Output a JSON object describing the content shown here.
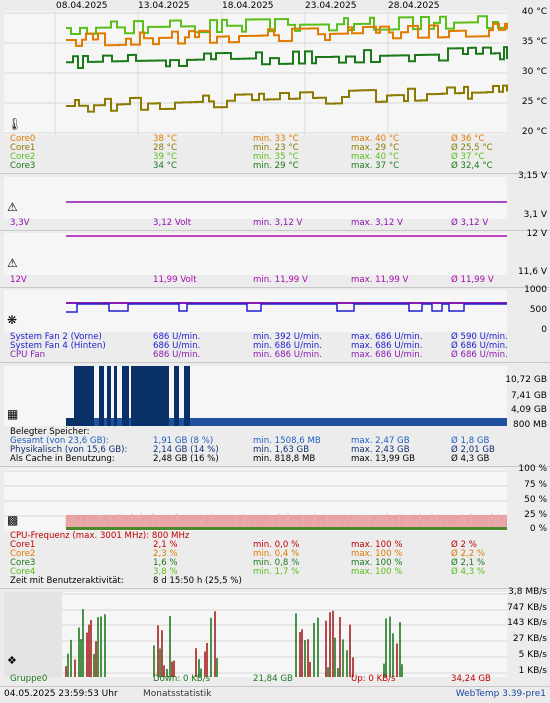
{
  "dates": [
    "08.04.2025",
    "13.04.2025",
    "18.04.2025",
    "23.04.2025",
    "28.04.2025"
  ],
  "colors": {
    "core0": "#e07a00",
    "core1": "#8a7a00",
    "core2": "#5bbf1a",
    "core3": "#1a7a1a",
    "volt3": "#9010b0",
    "volt12": "#aa0aaa",
    "fan_blue": "#2020d0",
    "fan_purple": "#8a1ab0",
    "mem_fill": "#0a3068",
    "mem_bar": "#2050a0",
    "cpu_fill": "#e8a0a0",
    "net_bar": "#a01010",
    "net_bar2": "#107010"
  },
  "temp": {
    "axis": [
      "40 °C",
      "35 °C",
      "30 °C",
      "25 °C",
      "20 °C"
    ],
    "rows": [
      {
        "name": "Core0",
        "cur": "38 °C",
        "min": "min. 33 °C",
        "max": "max. 40 °C",
        "avg": "Ø 36 °C",
        "color": "#e07a00"
      },
      {
        "name": "Core1",
        "cur": "28 °C",
        "min": "min. 23 °C",
        "max": "max. 29 °C",
        "avg": "Ø 25,5 °C",
        "color": "#8a7a00"
      },
      {
        "name": "Core2",
        "cur": "39 °C",
        "min": "min. 35 °C",
        "max": "max. 40 °C",
        "avg": "Ø 37 °C",
        "color": "#5bbf1a"
      },
      {
        "name": "Core3",
        "cur": "34 °C",
        "min": "min. 29 °C",
        "max": "max. 37 °C",
        "avg": "Ø 32,4 °C",
        "color": "#1a7a1a"
      }
    ]
  },
  "v33": {
    "axis": [
      "3,15 V",
      "3,1 V"
    ],
    "row": {
      "name": "3,3V",
      "cur": "3,12 Volt",
      "min": "min. 3,12 V",
      "max": "max. 3,12 V",
      "avg": "Ø 3,12 V"
    }
  },
  "v12": {
    "axis": [
      "12 V",
      "11,6 V"
    ],
    "row": {
      "name": "12V",
      "cur": "11,99 Volt",
      "min": "min. 11,99 V",
      "max": "max. 11,99 V",
      "avg": "Ø 11,99 V"
    }
  },
  "fans": {
    "axis": [
      "1000",
      "500",
      "0"
    ],
    "rows": [
      {
        "name": "System Fan 2 (Vorne)",
        "cur": "686 U/min.",
        "min": "min. 392 U/min.",
        "max": "max. 686 U/min.",
        "avg": "Ø 590 U/min.",
        "color": "#2020d0"
      },
      {
        "name": "System Fan 4 (Hinten)",
        "cur": "686 U/min.",
        "min": "min. 686 U/min.",
        "max": "max. 686 U/min.",
        "avg": "Ø 686 U/min.",
        "color": "#2020d0"
      },
      {
        "name": "CPU Fan",
        "cur": "686 U/min.",
        "min": "min. 686 U/min.",
        "max": "max. 686 U/min.",
        "avg": "Ø 686 U/min.",
        "color": "#8a1ab0"
      }
    ]
  },
  "mem": {
    "axis": [
      "10,72 GB",
      "7,41 GB",
      "4,09 GB",
      "800 MB"
    ],
    "title": "Belegter Speicher:",
    "rows": [
      {
        "name": "Gesamt (von 23,6 GB):",
        "cur": "1,91 GB (8 %)",
        "min": "min. 1508,6 MB",
        "max": "max. 2,47 GB",
        "avg": "Ø 1,8 GB",
        "color": "#2060c0"
      },
      {
        "name": "Physikalisch (von 15,6 GB):",
        "cur": "2,14 GB (14 %)",
        "min": "min. 1,63 GB",
        "max": "max. 2,43 GB",
        "avg": "Ø 2,01 GB",
        "color": "#103070"
      },
      {
        "name": "Als Cache in Benutzung:",
        "cur": "2,48 GB (16 %)",
        "min": "min. 818,8 MB",
        "max": "max. 13,99 GB",
        "avg": "Ø 4,3 GB",
        "color": "#000000"
      }
    ]
  },
  "cpu": {
    "axis": [
      "100 %",
      "75 %",
      "50 %",
      "25 %",
      "0 %"
    ],
    "freq": "CPU-Frequenz (max. 3001 MHz): 800 MHz",
    "rows": [
      {
        "name": "Core1",
        "cur": "2,1 %",
        "min": "min. 0,0 %",
        "max": "max. 100 %",
        "avg": "Ø 2 %",
        "color": "#c00000"
      },
      {
        "name": "Core2",
        "cur": "2,3 %",
        "min": "min. 0,4 %",
        "max": "max. 100 %",
        "avg": "Ø 2,2 %",
        "color": "#e07a00"
      },
      {
        "name": "Core3",
        "cur": "1,6 %",
        "min": "min. 0,8 %",
        "max": "max. 100 %",
        "avg": "Ø 2,1 %",
        "color": "#1a7a1a"
      },
      {
        "name": "Core4",
        "cur": "3,8 %",
        "min": "min. 1,7 %",
        "max": "max. 100 %",
        "avg": "Ø 4,3 %",
        "color": "#5bbf1a"
      }
    ],
    "activity_label": "Zeit mit Benutzeraktivität:",
    "activity_value": "8 d 15:50 h (25,5 %)"
  },
  "net": {
    "axis": [
      "3,8 MB/s",
      "747 KB/s",
      "143 KB/s",
      "27 KB/s",
      "5 KB/s",
      "1 KB/s"
    ],
    "group": "Gruppe0",
    "down": "Down: 0 KB/s",
    "down_total": "21,84 GB",
    "up": "Up: 0 KB/s",
    "up_total": "34,24 GB"
  },
  "footer": {
    "timestamp": "04.05.2025 23:59:53 Uhr",
    "stats": "Monatsstatistik",
    "version": "WebTemp 3.39-pre1"
  },
  "icons": {
    "temp": "thermometer-icon",
    "v33": "voltage-icon",
    "v12": "voltage-icon",
    "fan": "fan-icon",
    "mem": "memory-chip-icon",
    "cpu": "cpu-chip-icon",
    "net": "network-icon"
  }
}
